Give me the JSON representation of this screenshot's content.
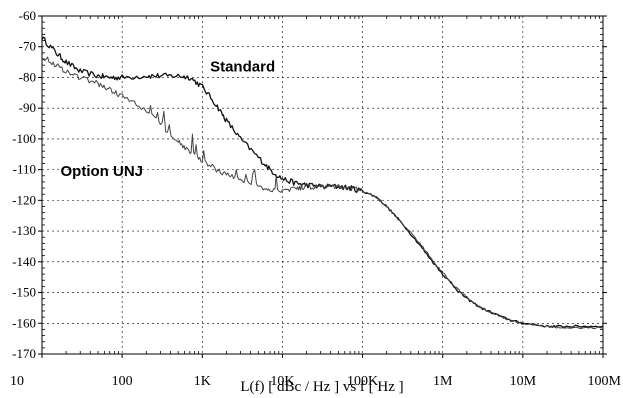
{
  "chart_data": {
    "type": "line",
    "title": "",
    "xlabel": "L(f)  [ dBc / Hz ]  vs  f  [ Hz ]",
    "ylabel": "",
    "x_scale": "log",
    "xlim": [
      10,
      100000000
    ],
    "ylim": [
      -170,
      -60
    ],
    "grid": true,
    "x_ticks": [
      10,
      100,
      1000,
      10000,
      100000,
      1000000,
      10000000,
      100000000
    ],
    "x_tick_labels": [
      "10",
      "100",
      "1K",
      "10K",
      "100K",
      "1M",
      "10M",
      "100M"
    ],
    "y_ticks": [
      -60,
      -70,
      -80,
      -90,
      -100,
      -110,
      -120,
      -130,
      -140,
      -150,
      -160,
      -170
    ],
    "y_tick_labels": [
      "-60",
      "-70",
      "-80",
      "-90",
      "-100",
      "-110",
      "-120",
      "-130",
      "-140",
      "-150",
      "-160",
      "-170"
    ],
    "series": [
      {
        "name": "Standard",
        "x": [
          10,
          15,
          20,
          30,
          50,
          70,
          100,
          200,
          300,
          500,
          700,
          1000,
          1500,
          2000,
          3000,
          5000,
          7000,
          10000,
          15000,
          20000,
          30000,
          50000,
          70000,
          100000,
          150000,
          200000,
          300000,
          500000,
          700000,
          1000000,
          1500000,
          2000000,
          3000000,
          5000000,
          7000000,
          10000000,
          20000000,
          30000000,
          50000000,
          100000000
        ],
        "y": [
          -67,
          -72,
          -75,
          -78,
          -79.5,
          -80,
          -80,
          -79.5,
          -79.5,
          -79.5,
          -80,
          -83,
          -89,
          -94,
          -100,
          -106,
          -110,
          -113,
          -114.5,
          -115,
          -115.5,
          -115.5,
          -116,
          -117,
          -119,
          -122,
          -127,
          -134,
          -139,
          -144,
          -149,
          -152,
          -155,
          -157.5,
          -159,
          -160,
          -161,
          -161,
          -161,
          -161
        ]
      },
      {
        "name": "Option UNJ",
        "x": [
          10,
          15,
          20,
          30,
          50,
          70,
          100,
          200,
          300,
          500,
          700,
          1000,
          1500,
          2000,
          3000,
          5000,
          7000,
          10000,
          15000,
          20000,
          30000,
          50000,
          70000,
          100000,
          150000,
          200000,
          300000,
          500000,
          700000,
          1000000,
          1500000,
          2000000,
          3000000,
          5000000,
          7000000,
          10000000,
          20000000,
          30000000,
          50000000,
          100000000
        ],
        "y": [
          -73,
          -76,
          -78,
          -80,
          -82,
          -84,
          -86,
          -91,
          -95,
          -101,
          -104,
          -107,
          -110,
          -111.5,
          -113.5,
          -115.5,
          -116.5,
          -116.5,
          -116,
          -115.5,
          -115.5,
          -115.5,
          -116,
          -117,
          -119,
          -122,
          -127,
          -133.5,
          -138.5,
          -143.5,
          -148.5,
          -151.5,
          -155,
          -157.5,
          -159,
          -160,
          -161,
          -161.5,
          -161.5,
          -161.5
        ]
      }
    ],
    "annotations": [
      {
        "text": "Standard",
        "x": 1250,
        "y": -78
      },
      {
        "text": "Option UNJ",
        "x": 17,
        "y": -112
      }
    ]
  }
}
